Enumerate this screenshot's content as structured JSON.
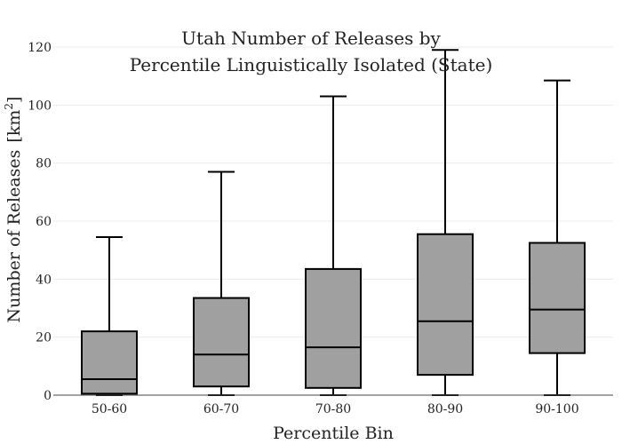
{
  "chart_data": {
    "type": "box",
    "title_lines": [
      "Utah Number of Releases by",
      "Percentile Linguistically Isolated (State)"
    ],
    "xlabel": "Percentile Bin",
    "ylabel": "Number of Releases",
    "ylabel_unit_base": "[km",
    "ylabel_unit_sup": "2",
    "ylabel_unit_close": "]",
    "ylim": [
      0,
      120
    ],
    "yticks": [
      0,
      20,
      40,
      60,
      80,
      100,
      120
    ],
    "categories": [
      "50-60",
      "60-70",
      "70-80",
      "80-90",
      "90-100"
    ],
    "boxes": [
      {
        "category": "50-60",
        "min": 0,
        "q1": 0.5,
        "median": 5.5,
        "q3": 22,
        "max": 54.5
      },
      {
        "category": "60-70",
        "min": 0,
        "q1": 3,
        "median": 14,
        "q3": 33.5,
        "max": 77
      },
      {
        "category": "70-80",
        "min": 0,
        "q1": 2.5,
        "median": 16.5,
        "q3": 43.5,
        "max": 103
      },
      {
        "category": "80-90",
        "min": 0,
        "q1": 7,
        "median": 25.5,
        "q3": 55.5,
        "max": 119
      },
      {
        "category": "90-100",
        "min": 0,
        "q1": 14.5,
        "median": 29.5,
        "q3": 52.5,
        "max": 108.5
      }
    ],
    "box_color": "#a0a0a0",
    "line_color": "#000000",
    "grid": true
  }
}
